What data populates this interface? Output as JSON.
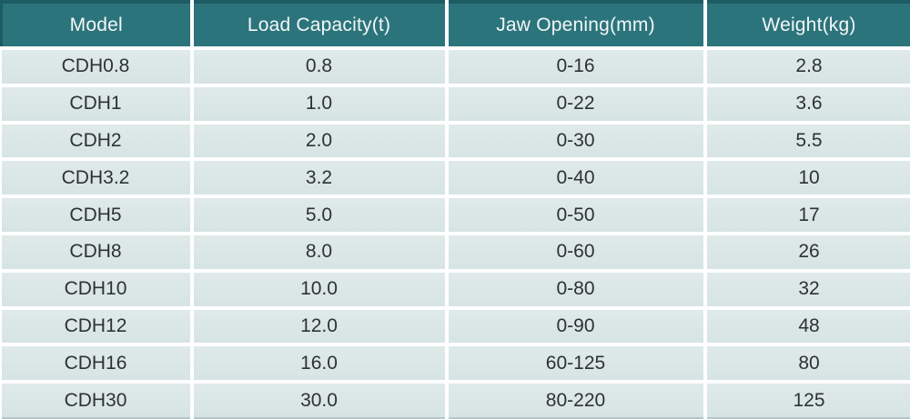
{
  "chart_data": {
    "type": "table",
    "columns": [
      "Model",
      "Load Capacity(t)",
      "Jaw Opening(mm)",
      "Weight(kg)"
    ],
    "rows": [
      [
        "CDH0.8",
        "0.8",
        "0-16",
        "2.8"
      ],
      [
        "CDH1",
        "1.0",
        "0-22",
        "3.6"
      ],
      [
        "CDH2",
        "2.0",
        "0-30",
        "5.5"
      ],
      [
        "CDH3.2",
        "3.2",
        "0-40",
        "10"
      ],
      [
        "CDH5",
        "5.0",
        "0-50",
        "17"
      ],
      [
        "CDH8",
        "8.0",
        "0-60",
        "26"
      ],
      [
        "CDH10",
        "10.0",
        "0-80",
        "32"
      ],
      [
        "CDH12",
        "12.0",
        "0-90",
        "48"
      ],
      [
        "CDH16",
        "16.0",
        "60-125",
        "80"
      ],
      [
        "CDH30",
        "30.0",
        "80-220",
        "125"
      ]
    ]
  },
  "colors": {
    "header_background": "#2c747c",
    "header_border_top": "#1e5c64",
    "header_text": "#f2f7f7",
    "row_background": "#d6e4e3",
    "row_background_light": "#dfeae9",
    "row_text": "#2e3233",
    "separator": "#ffffff",
    "bottom_edge": "#b3c7c6"
  }
}
